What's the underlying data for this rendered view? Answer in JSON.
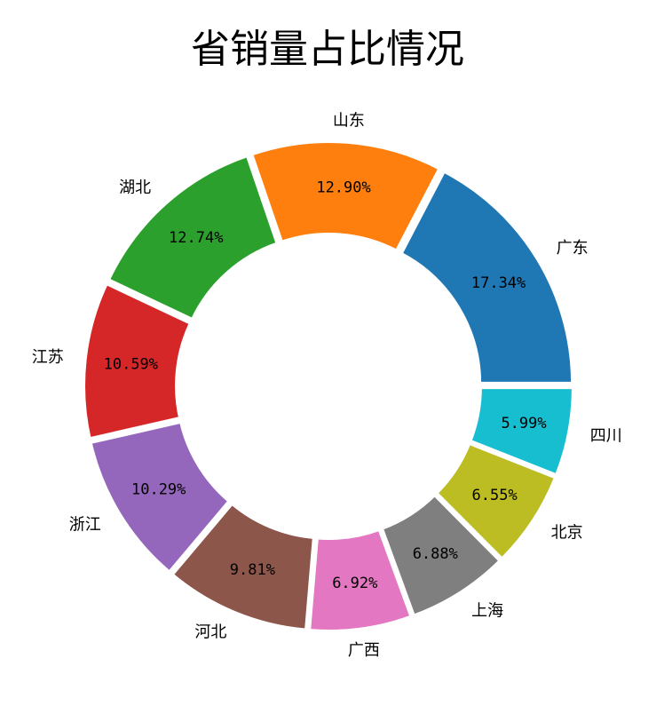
{
  "chart_data": {
    "type": "pie",
    "variant": "donut",
    "title": "省销量占比情况",
    "start_angle_deg": 0,
    "direction": "counterclockwise",
    "legend": "none",
    "slices": [
      {
        "label": "广东",
        "value": 17.34,
        "pct_text": "17.34%",
        "color": "#1f77b4"
      },
      {
        "label": "山东",
        "value": 12.9,
        "pct_text": "12.90%",
        "color": "#ff7f0e"
      },
      {
        "label": "湖北",
        "value": 12.74,
        "pct_text": "12.74%",
        "color": "#2ca02c"
      },
      {
        "label": "江苏",
        "value": 10.59,
        "pct_text": "10.59%",
        "color": "#d62728"
      },
      {
        "label": "浙江",
        "value": 10.29,
        "pct_text": "10.29%",
        "color": "#9467bd"
      },
      {
        "label": "河北",
        "value": 9.81,
        "pct_text": "9.81%",
        "color": "#8c564b"
      },
      {
        "label": "广西",
        "value": 6.92,
        "pct_text": "6.92%",
        "color": "#e377c2"
      },
      {
        "label": "上海",
        "value": 6.88,
        "pct_text": "6.88%",
        "color": "#7f7f7f"
      },
      {
        "label": "北京",
        "value": 6.55,
        "pct_text": "6.55%",
        "color": "#bcbd22"
      },
      {
        "label": "四川",
        "value": 5.99,
        "pct_text": "5.99%",
        "color": "#17becf"
      }
    ]
  }
}
